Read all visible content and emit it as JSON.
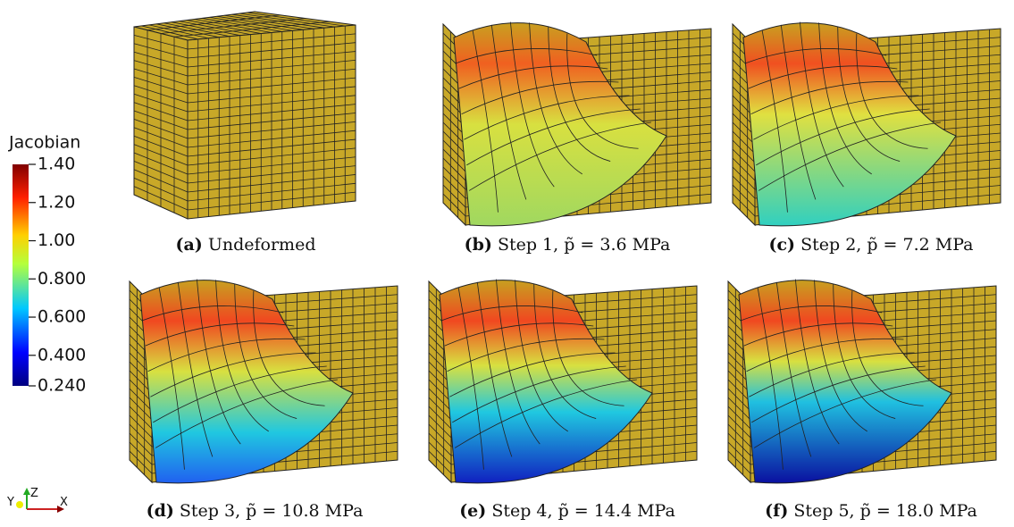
{
  "colorbar": {
    "title": "Jacobian",
    "range": [
      0.24,
      1.4
    ],
    "ticks": [
      {
        "value": 1.4,
        "label": "1.40"
      },
      {
        "value": 1.2,
        "label": "1.20"
      },
      {
        "value": 1.0,
        "label": "1.00"
      },
      {
        "value": 0.8,
        "label": "0.800"
      },
      {
        "value": 0.6,
        "label": "0.600"
      },
      {
        "value": 0.4,
        "label": "0.400"
      },
      {
        "value": 0.24,
        "label": "0.240"
      }
    ]
  },
  "axes": {
    "z": "Z",
    "y": "Y",
    "x": "X"
  },
  "panels": [
    {
      "label": "(a)",
      "text": "Undeformed"
    },
    {
      "label": "(b)",
      "text": "Step 1, p̃ = 3.6 MPa"
    },
    {
      "label": "(c)",
      "text": "Step 2, p̃ = 7.2 MPa"
    },
    {
      "label": "(d)",
      "text": "Step 3, p̃ = 10.8 MPa"
    },
    {
      "label": "(e)",
      "text": "Step 4, p̃ = 14.4 MPa"
    },
    {
      "label": "(f)",
      "text": "Step 5, p̃ = 18.0 MPa"
    }
  ]
}
